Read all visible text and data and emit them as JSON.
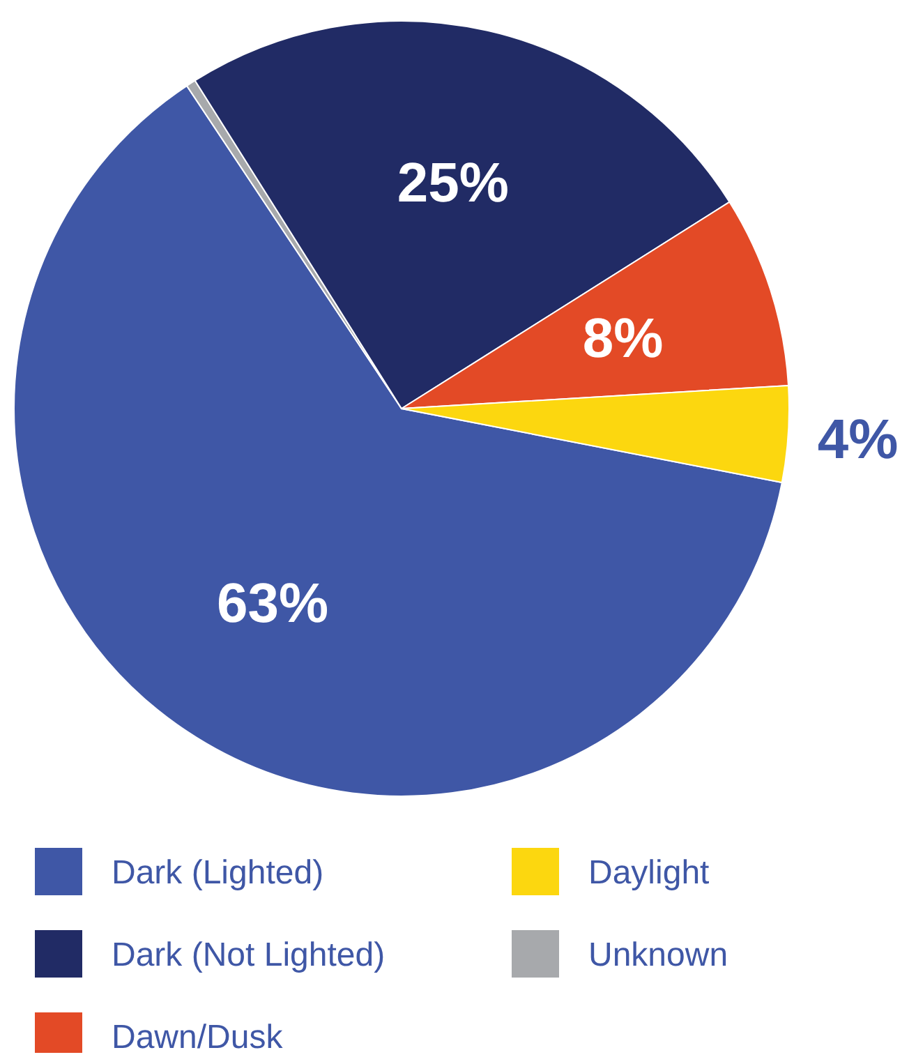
{
  "chart_data": {
    "type": "pie",
    "categories": [
      "Dark (Lighted)",
      "Unknown",
      "Dark (Not Lighted)",
      "Dawn/Dusk",
      "Daylight"
    ],
    "values": [
      62.6,
      0.4,
      25,
      8,
      4
    ],
    "value_labels": [
      "63%",
      null,
      "25%",
      "8%",
      "4%"
    ],
    "colors": [
      "#3f57a6",
      "#a7a9ac",
      "#212b65",
      "#e34a26",
      "#fcd70f"
    ],
    "legend": "bottom"
  }
}
